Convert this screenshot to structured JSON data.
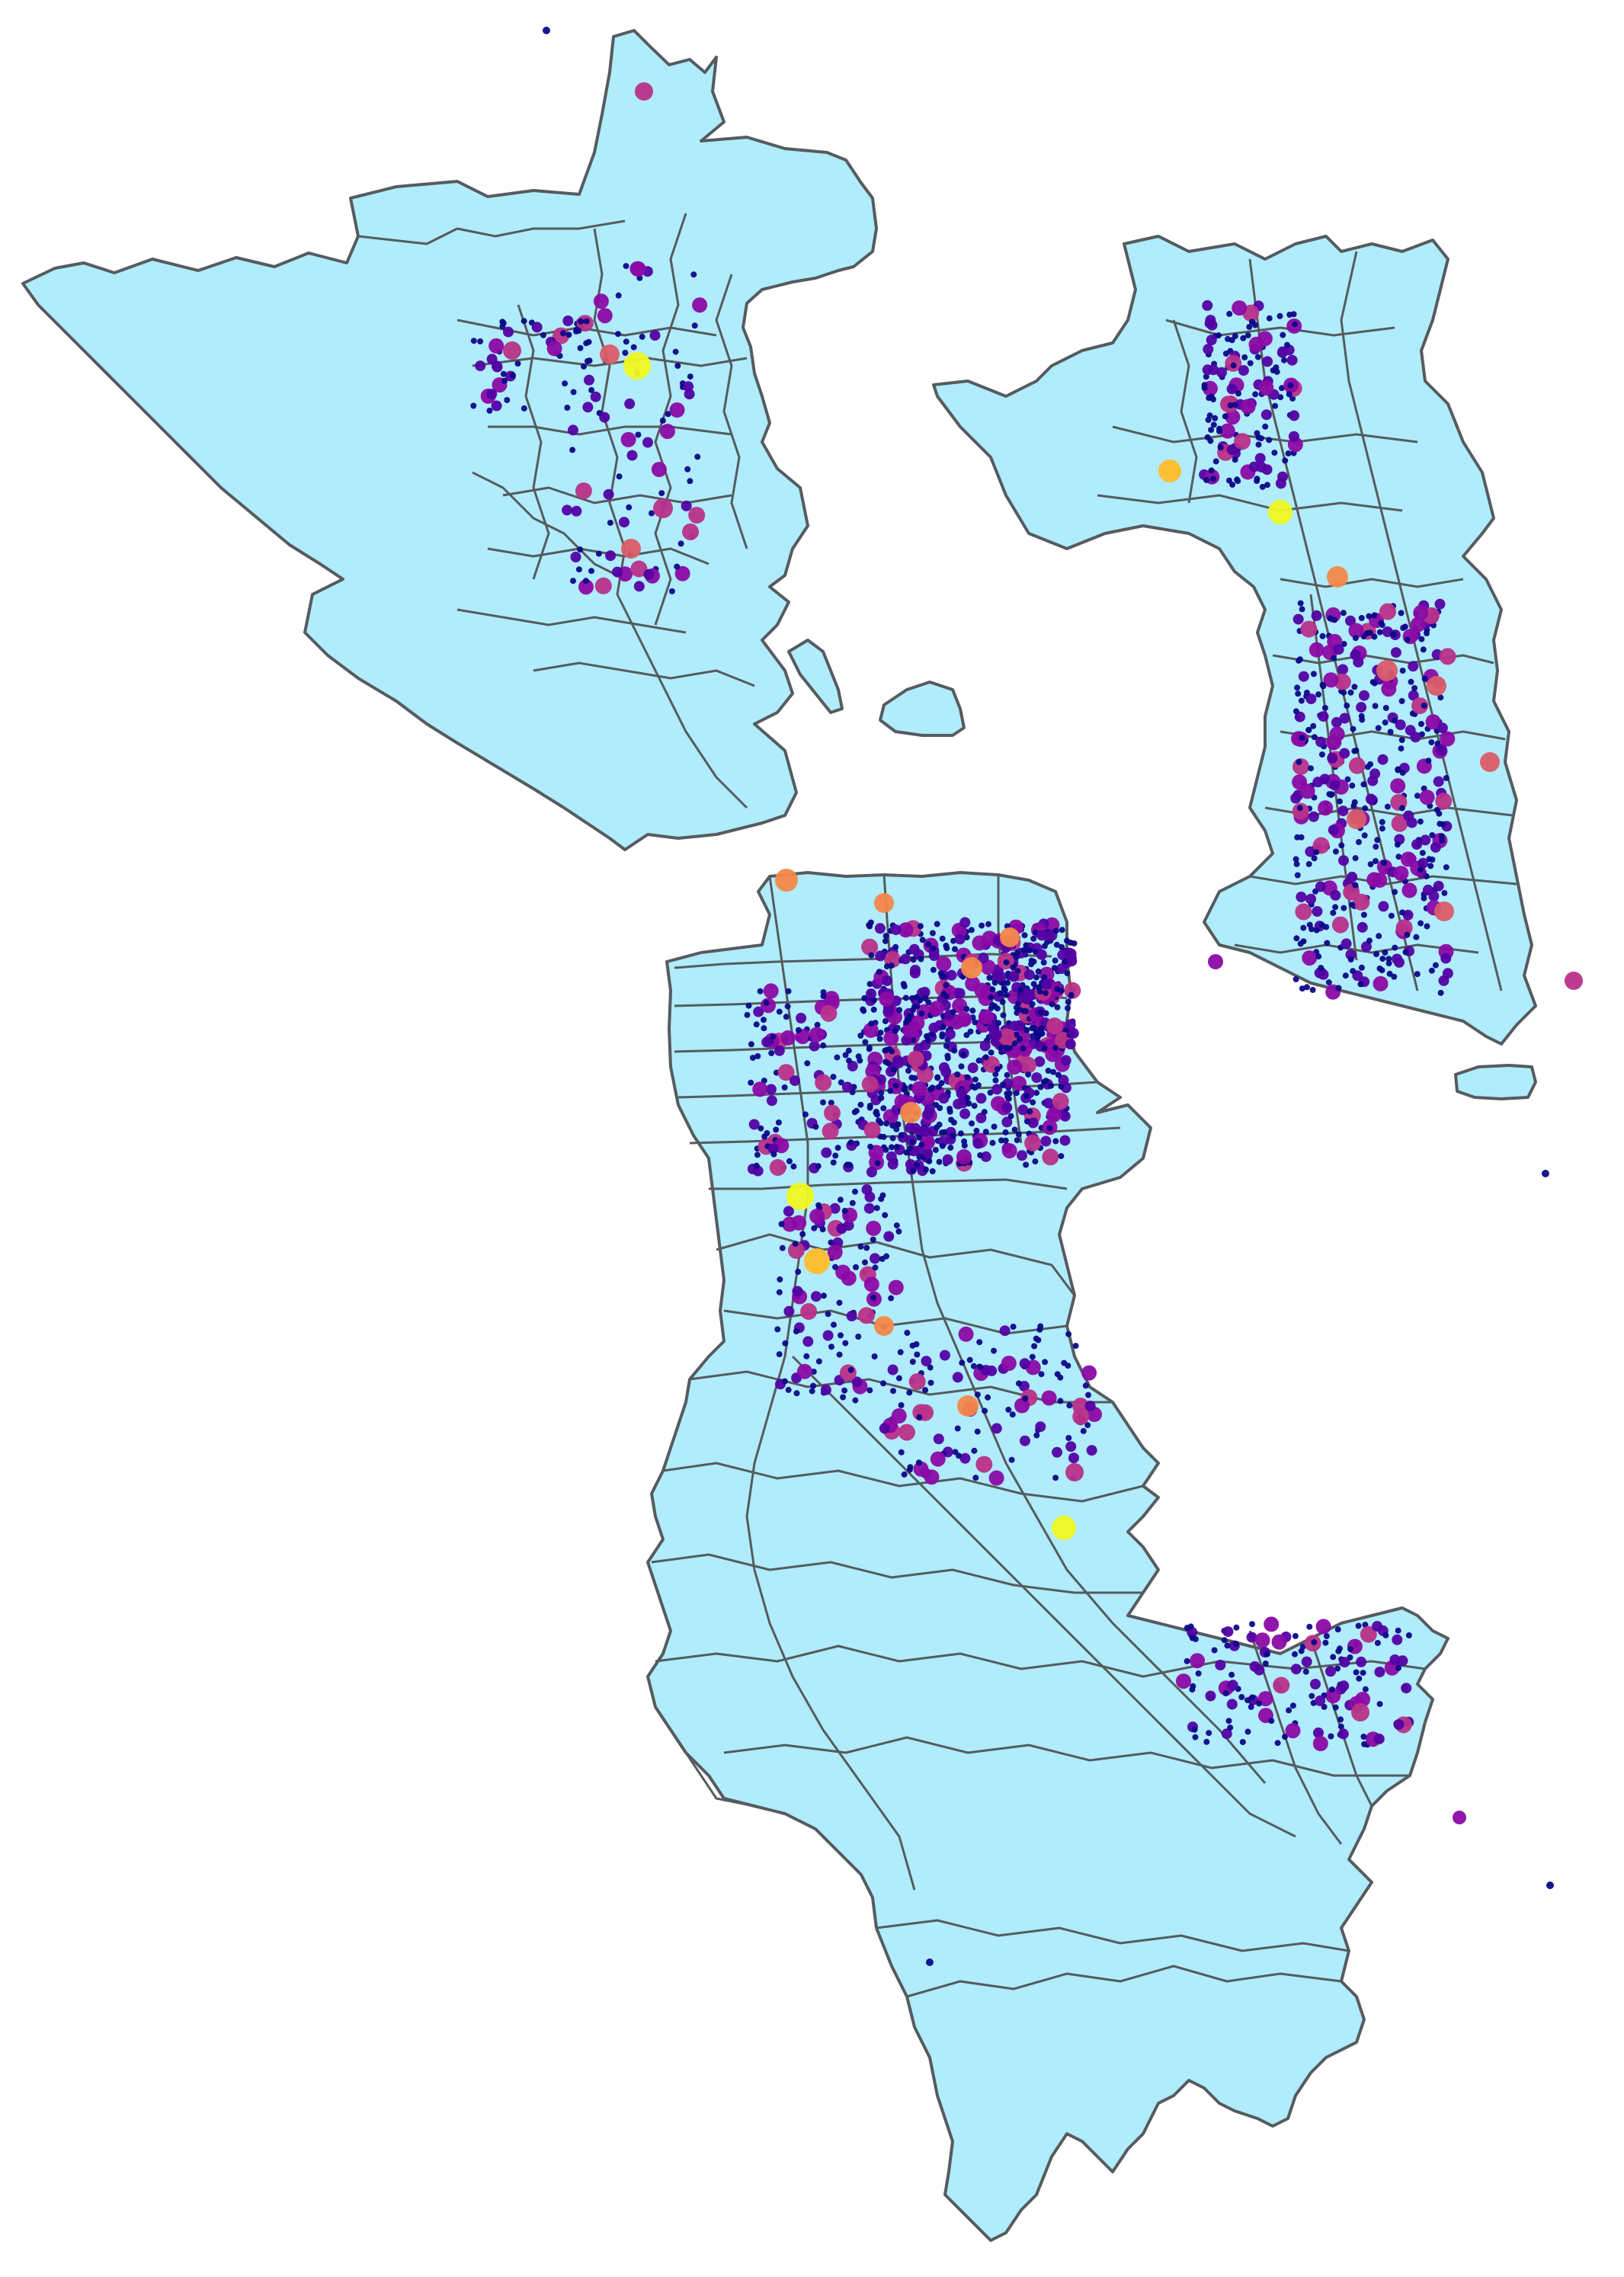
{
  "map": {
    "type": "point-over-polygon map",
    "style": {
      "land_fill": "#b0ecfc",
      "boundary_stroke": "#555b5e",
      "background": "#ffffff"
    },
    "colormap": {
      "name": "plasma",
      "stops": [
        "#0d0887",
        "#5302a3",
        "#8b0aa5",
        "#b83289",
        "#db5c68",
        "#f48849",
        "#febd2a",
        "#f0f921"
      ]
    },
    "labels": []
  }
}
